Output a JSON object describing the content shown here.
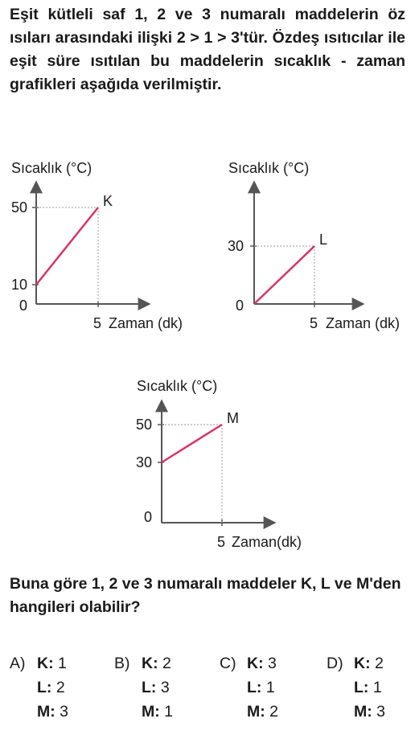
{
  "intro_text": "Eşit kütleli saf 1, 2 ve 3 numaralı maddelerin öz ısıları arasındaki ilişki 2 > 1 > 3'tür. Özdeş ısıtıcılar ile eşit süre ısıtılan bu maddelerin sıcaklık - zaman grafikleri aşağıda verilmiştir.",
  "chart_data": [
    {
      "type": "line",
      "ylabel": "Sıcaklık (°C)",
      "xlabel": "Zaman (dk)",
      "series": [
        {
          "name": "K",
          "x": [
            0,
            5
          ],
          "y": [
            10,
            50
          ]
        }
      ],
      "x_ticks": [
        "5"
      ],
      "y_ticks": [
        "10",
        "50"
      ],
      "origin_label": "0"
    },
    {
      "type": "line",
      "ylabel": "Sıcaklık (°C)",
      "xlabel": "Zaman (dk)",
      "series": [
        {
          "name": "L",
          "x": [
            0,
            5
          ],
          "y": [
            0,
            30
          ]
        }
      ],
      "x_ticks": [
        "5"
      ],
      "y_ticks": [
        "30"
      ],
      "origin_label": "0"
    },
    {
      "type": "line",
      "ylabel": "Sıcaklık (°C)",
      "xlabel": "Zaman(dk)",
      "series": [
        {
          "name": "M",
          "x": [
            0,
            5
          ],
          "y": [
            30,
            50
          ]
        }
      ],
      "x_ticks": [
        "5"
      ],
      "y_ticks": [
        "30",
        "50"
      ],
      "origin_label": "0"
    }
  ],
  "question_text": "Buna göre 1, 2 ve 3 numaralı maddeler K, L ve M'den hangileri olabilir?",
  "options": [
    {
      "letter": "A)",
      "rows": [
        {
          "key": "K:",
          "val": "1"
        },
        {
          "key": "L:",
          "val": "2"
        },
        {
          "key": "M:",
          "val": "3"
        }
      ]
    },
    {
      "letter": "B)",
      "rows": [
        {
          "key": "K:",
          "val": "2"
        },
        {
          "key": "L:",
          "val": "3"
        },
        {
          "key": "M:",
          "val": "1"
        }
      ]
    },
    {
      "letter": "C)",
      "rows": [
        {
          "key": "K:",
          "val": "3"
        },
        {
          "key": "L:",
          "val": "1"
        },
        {
          "key": "M:",
          "val": "2"
        }
      ]
    },
    {
      "letter": "D)",
      "rows": [
        {
          "key": "K:",
          "val": "2"
        },
        {
          "key": "L:",
          "val": "1"
        },
        {
          "key": "M:",
          "val": "3"
        }
      ]
    }
  ],
  "colors": {
    "line": "#d6336c",
    "axis": "#555555",
    "guide": "#9a9a9a"
  }
}
